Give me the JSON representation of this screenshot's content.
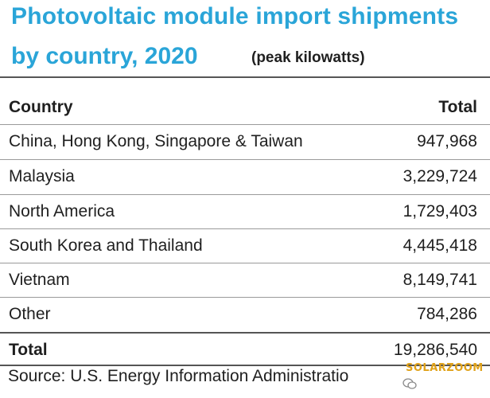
{
  "title": {
    "line1": "Photovoltaic module import shipments",
    "line2": "by country, 2020",
    "unit": "(peak kilowatts)"
  },
  "table": {
    "headers": [
      "Country",
      "Total"
    ],
    "rows": [
      {
        "country": "China, Hong Kong, Singapore & Taiwan",
        "total": "947,968"
      },
      {
        "country": "Malaysia",
        "total": "3,229,724"
      },
      {
        "country": "North America",
        "total": "1,729,403"
      },
      {
        "country": "South Korea and Thailand",
        "total": "4,445,418"
      },
      {
        "country": "Vietnam",
        "total": "8,149,741"
      },
      {
        "country": "Other",
        "total": "784,286"
      }
    ],
    "total_row": {
      "country": "Total",
      "total": "19,286,540"
    }
  },
  "source": "Source: U.S. Energy Information Administratio",
  "watermark": {
    "logo": "SOLARZOOM",
    "icon": "wechat-icon"
  },
  "colors": {
    "title": "#2aa5d8",
    "watermark": "#e0a21a"
  }
}
